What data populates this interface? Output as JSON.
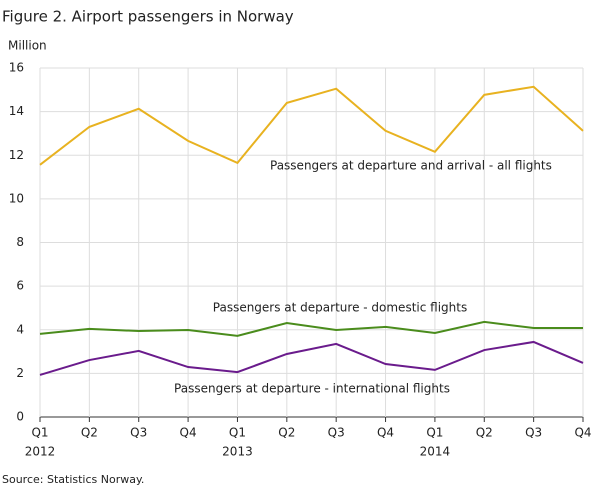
{
  "chart_data": {
    "type": "line",
    "title": "Figure 2. Airport passengers in Norway",
    "y_label": "Million",
    "source": "Source: Statistics Norway.",
    "categories": [
      "Q1",
      "Q2",
      "Q3",
      "Q4",
      "Q1",
      "Q2",
      "Q3",
      "Q4",
      "Q1",
      "Q2",
      "Q3",
      "Q4"
    ],
    "year_labels": [
      "2012",
      null,
      null,
      null,
      "2013",
      null,
      null,
      null,
      "2014",
      null,
      null,
      null
    ],
    "series": [
      {
        "name": "Passengers  at departure  and arrival - all flights",
        "color": "#e8b220",
        "values": [
          11.56,
          13.3,
          14.13,
          12.66,
          11.65,
          14.4,
          15.05,
          13.12,
          12.16,
          14.77,
          15.14,
          13.12
        ]
      },
      {
        "name": "Passengers  at departure  - domestic flights",
        "color": "#4a8c1c",
        "values": [
          3.81,
          4.04,
          3.94,
          3.99,
          3.72,
          4.31,
          3.99,
          4.13,
          3.85,
          4.36,
          4.08,
          4.08
        ]
      },
      {
        "name": "Passengers  at departure  - international  flights",
        "color": "#6a1b8c",
        "values": [
          1.93,
          2.61,
          3.03,
          2.29,
          2.06,
          2.89,
          3.35,
          2.43,
          2.16,
          3.07,
          3.44,
          2.48
        ]
      }
    ],
    "ylim": [
      0,
      16
    ],
    "yticks": [
      0,
      2,
      4,
      6,
      8,
      10,
      12,
      14,
      16
    ],
    "grid": true
  }
}
